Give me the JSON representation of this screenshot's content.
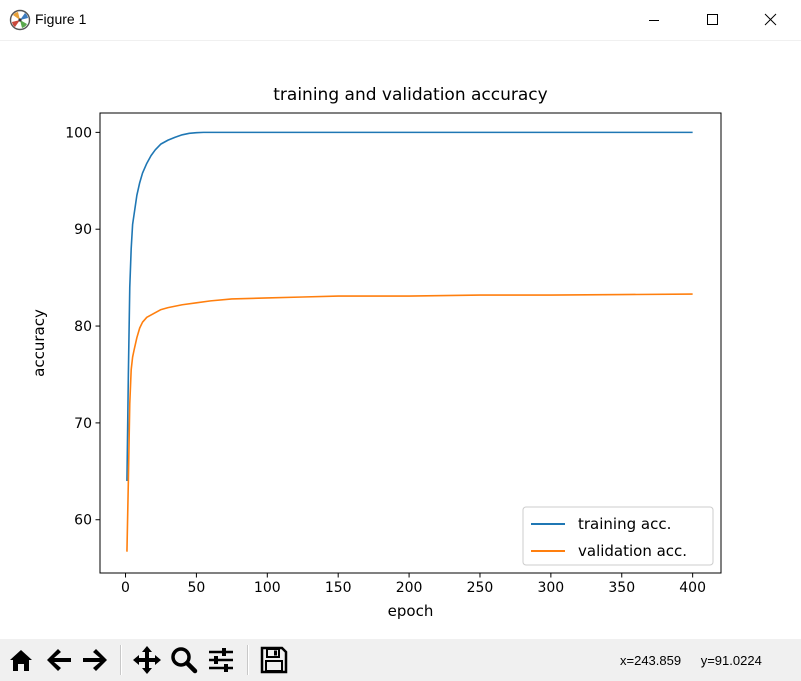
{
  "window": {
    "title": "Figure 1"
  },
  "icons": {
    "app": "matplotlib-figure-icon",
    "minimize": "minimize-icon",
    "maximize": "maximize-icon",
    "close": "close-icon",
    "home": "home-icon",
    "back": "arrow-left-icon",
    "forward": "arrow-right-icon",
    "pan": "move-icon",
    "zoom": "magnifier-icon",
    "configure": "sliders-icon",
    "save": "floppy-disk-icon"
  },
  "status": {
    "x_readout": "x=243.859",
    "y_readout": "y=91.0224"
  },
  "chart_data": {
    "type": "line",
    "title": "training and validation accuracy",
    "xlabel": "epoch",
    "ylabel": "accuracy",
    "xlim": [
      -18,
      420
    ],
    "ylim": [
      54.5,
      102
    ],
    "xticks": [
      0,
      50,
      100,
      150,
      200,
      250,
      300,
      350,
      400
    ],
    "yticks": [
      60,
      70,
      80,
      90,
      100
    ],
    "grid": false,
    "legend": "lower-right",
    "series": [
      {
        "name": "training acc.",
        "color": "#1f77b4",
        "points": [
          [
            1,
            64
          ],
          [
            2,
            75
          ],
          [
            3,
            84
          ],
          [
            4,
            88
          ],
          [
            5,
            90.5
          ],
          [
            6,
            91.5
          ],
          [
            7,
            92.5
          ],
          [
            8,
            93.5
          ],
          [
            10,
            94.8
          ],
          [
            12,
            95.8
          ],
          [
            15,
            96.8
          ],
          [
            18,
            97.6
          ],
          [
            21,
            98.2
          ],
          [
            25,
            98.8
          ],
          [
            30,
            99.2
          ],
          [
            35,
            99.5
          ],
          [
            40,
            99.75
          ],
          [
            45,
            99.9
          ],
          [
            50,
            99.97
          ],
          [
            55,
            100
          ],
          [
            100,
            100
          ],
          [
            150,
            100
          ],
          [
            200,
            100
          ],
          [
            250,
            100
          ],
          [
            300,
            100
          ],
          [
            350,
            100
          ],
          [
            400,
            100
          ]
        ]
      },
      {
        "name": "validation acc.",
        "color": "#ff7f0e",
        "points": [
          [
            1,
            56.7
          ],
          [
            2,
            64
          ],
          [
            3,
            72
          ],
          [
            4,
            75.5
          ],
          [
            5,
            76.8
          ],
          [
            6,
            77.5
          ],
          [
            8,
            78.8
          ],
          [
            10,
            79.8
          ],
          [
            12,
            80.4
          ],
          [
            15,
            80.9
          ],
          [
            20,
            81.3
          ],
          [
            25,
            81.7
          ],
          [
            30,
            81.9
          ],
          [
            40,
            82.2
          ],
          [
            50,
            82.4
          ],
          [
            60,
            82.6
          ],
          [
            75,
            82.8
          ],
          [
            100,
            82.9
          ],
          [
            125,
            83.0
          ],
          [
            150,
            83.1
          ],
          [
            200,
            83.1
          ],
          [
            250,
            83.2
          ],
          [
            300,
            83.2
          ],
          [
            350,
            83.25
          ],
          [
            400,
            83.3
          ]
        ]
      }
    ]
  }
}
